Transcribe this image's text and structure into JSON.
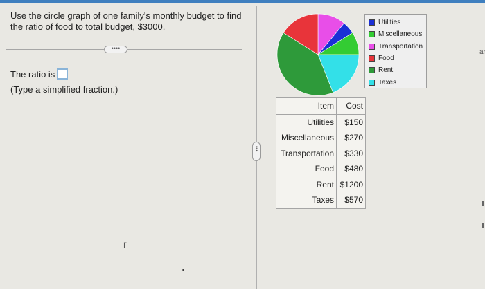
{
  "question": {
    "text": "Use the circle graph of one family's monthly budget to find the ratio of food to total budget, $3000."
  },
  "more_button": {
    "label": "••••"
  },
  "answer": {
    "prefix": "The ratio is",
    "hint": "(Type a simplified fraction.)",
    "value": ""
  },
  "chart_data": {
    "type": "pie",
    "title": "",
    "categories": [
      "Utilities",
      "Miscellaneous",
      "Transportation",
      "Food",
      "Rent",
      "Taxes"
    ],
    "values": [
      150,
      270,
      330,
      480,
      1200,
      570
    ],
    "colors": [
      "#1a2fd6",
      "#33cc33",
      "#e84ee8",
      "#e8343a",
      "#2e9a3a",
      "#33e0e8"
    ],
    "legend_position": "right"
  },
  "legend": {
    "items": [
      {
        "label": "Utilities",
        "color": "#1a2fd6"
      },
      {
        "label": "Miscellaneous",
        "color": "#33cc33"
      },
      {
        "label": "Transportation",
        "color": "#e84ee8"
      },
      {
        "label": "Food",
        "color": "#e8343a"
      },
      {
        "label": "Rent",
        "color": "#2e9a3a"
      },
      {
        "label": "Taxes",
        "color": "#33e0e8"
      }
    ]
  },
  "table": {
    "headers": [
      "Item",
      "Cost"
    ],
    "rows": [
      [
        "Utilities",
        "$150"
      ],
      [
        "Miscellaneous",
        "$270"
      ],
      [
        "Transportation",
        "$330"
      ],
      [
        "Food",
        "$480"
      ],
      [
        "Rent",
        "$1200"
      ],
      [
        "Taxes",
        "$570"
      ]
    ]
  },
  "divider_handle": {
    "label": "•••"
  },
  "stray_marks": {
    "cursor": "r"
  },
  "edge": {
    "text": "ar"
  }
}
